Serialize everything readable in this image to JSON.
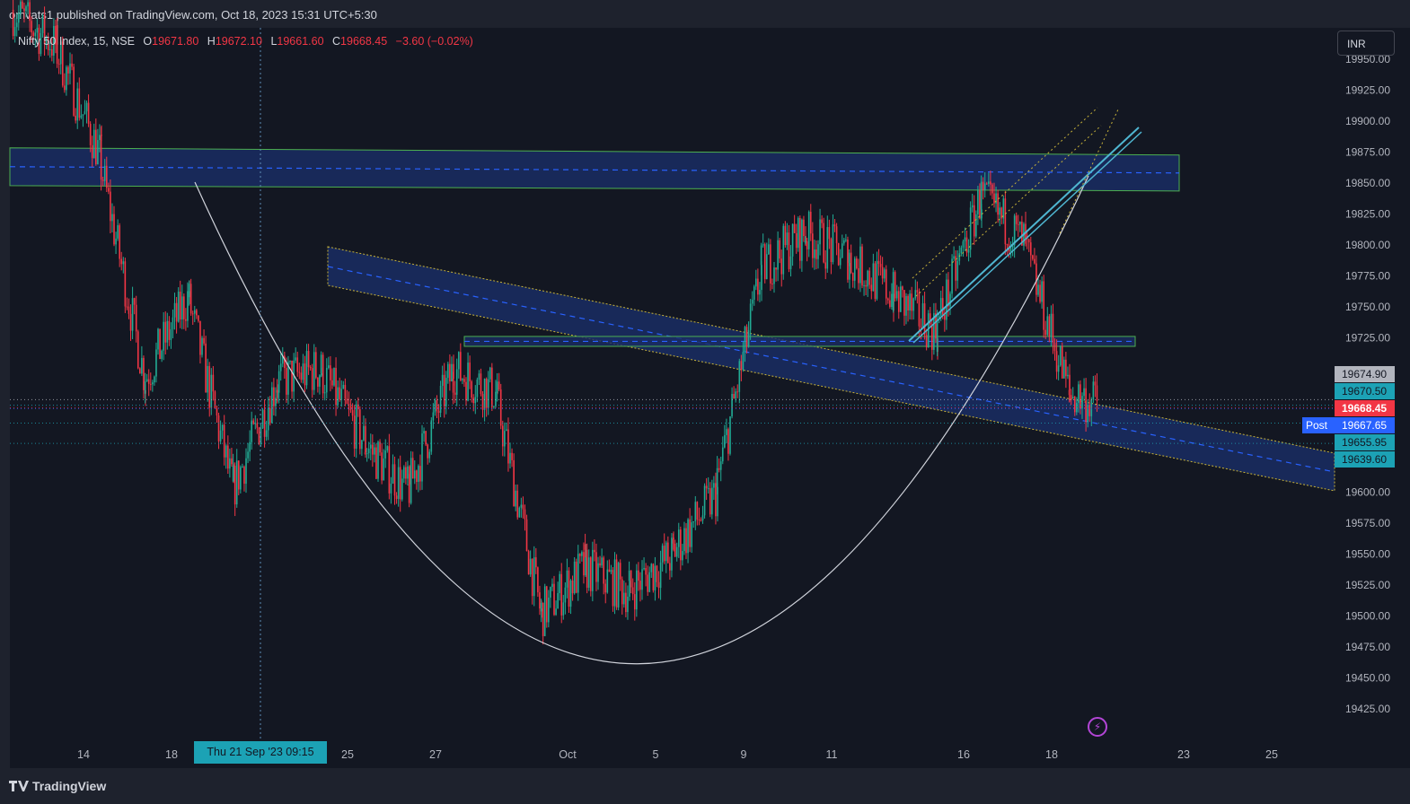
{
  "header": {
    "published": "omvats1 published on TradingView.com, Oct 18, 2023 15:31 UTC+5:30"
  },
  "legend": {
    "symbol": "Nifty 50 Index, 15, NSE",
    "open_label": "O",
    "open": "19671.80",
    "high_label": "H",
    "high": "19672.10",
    "low_label": "L",
    "low": "19661.60",
    "close_label": "C",
    "close": "19668.45",
    "change": "−3.60 (−0.02%)"
  },
  "currency_button": "INR",
  "footer": {
    "brand": "TradingView"
  },
  "crosshair": {
    "date_label": "Thu 21 Sep '23   09:15"
  },
  "price_tags": [
    {
      "text": "19674.90",
      "bg": "#b2b5be",
      "fg": "#131722"
    },
    {
      "text": "19670.50",
      "bg": "#1ca2b5",
      "fg": "#131722"
    },
    {
      "text": "19668.45",
      "bg": "#f23645",
      "fg": "#ffffff"
    },
    {
      "text": "19667.65",
      "bg": "#2962ff",
      "fg": "#ffffff"
    },
    {
      "text": "19655.95",
      "bg": "#1ca2b5",
      "fg": "#131722"
    },
    {
      "text": "19639.60",
      "bg": "#1ca2b5",
      "fg": "#131722"
    }
  ],
  "post_label": "Post",
  "colors": {
    "background": "#131722",
    "up": "#22ab94",
    "down": "#f23645",
    "channel_fill": "#1a2d63",
    "channel_border": "#4caf50",
    "dashed": "#2962ff",
    "curve": "#d1d4dc",
    "dotted": "#c8b33a",
    "cyan": "#4fb6d1",
    "crosshair": "#5e8db5"
  },
  "chart_data": {
    "type": "candlestick",
    "symbol": "Nifty 50 Index",
    "interval": "15",
    "exchange": "NSE",
    "y_ticks": [
      19425,
      19450,
      19475,
      19500,
      19525,
      19550,
      19575,
      19600,
      19625,
      19650,
      19675,
      19700,
      19725,
      19750,
      19775,
      19800,
      19825,
      19850,
      19875,
      19900,
      19925,
      19950
    ],
    "y_tick_labels": [
      "19425.00",
      "19450.00",
      "19475.00",
      "19500.00",
      "19525.00",
      "19550.00",
      "19575.00",
      "19600.00",
      "",
      "",
      "",
      "",
      "19725.00",
      "19750.00",
      "19775.00",
      "19800.00",
      "19825.00",
      "19850.00",
      "19875.00",
      "19900.00",
      "19925.00",
      "19950.00"
    ],
    "ylim": [
      19400,
      19960
    ],
    "x_ticks": [
      {
        "label": "14",
        "day": 0
      },
      {
        "label": "18",
        "day": 2
      },
      {
        "label": "25",
        "day": 6
      },
      {
        "label": "27",
        "day": 8
      },
      {
        "label": "Oct",
        "day": 11
      },
      {
        "label": "5",
        "day": 13
      },
      {
        "label": "9",
        "day": 15
      },
      {
        "label": "11",
        "day": 17
      },
      {
        "label": "16",
        "day": 20
      },
      {
        "label": "18",
        "day": 22
      },
      {
        "label": "23",
        "day": 25
      },
      {
        "label": "25",
        "day": 27
      }
    ],
    "day_closes": [
      19990,
      19960,
      19870,
      19690,
      19760,
      19600,
      19690,
      19700,
      19640,
      19600,
      19700,
      19680,
      19500,
      19540,
      19520,
      19550,
      19600,
      19780,
      19810,
      19790,
      19760,
      19730,
      19840,
      19800,
      19680,
      19668
    ],
    "horizontal_lines": [
      19674.9,
      19670.5,
      19668.45,
      19667.65,
      19655.95,
      19639.6
    ],
    "resistance_zone": {
      "top": 19877,
      "bottom": 19845,
      "mid": 19861
    },
    "mid_zone": {
      "top": 19726,
      "bottom": 19718
    },
    "last_price": 19668.45
  }
}
